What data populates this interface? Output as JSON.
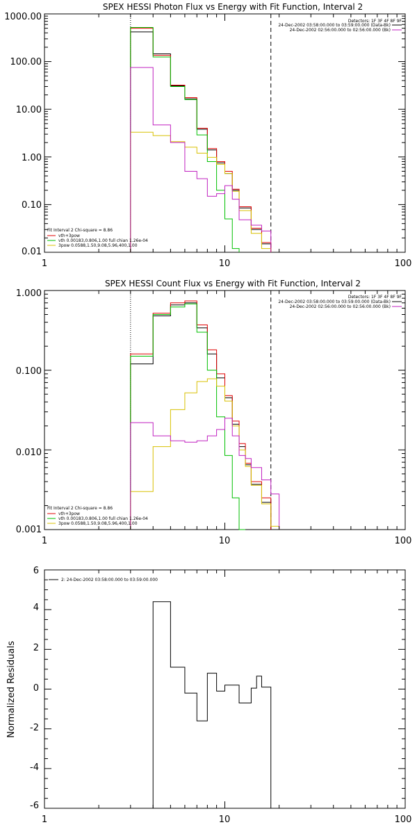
{
  "chart_data": [
    {
      "type": "line",
      "title": "SPEX HESSI Photon Flux vs Energy with Fit Function, Interval 2",
      "ylabel": "",
      "xlabel": "",
      "xscale": "log",
      "yscale": "log",
      "xlim": [
        1,
        100
      ],
      "ylim": [
        0.01,
        1000
      ],
      "xticks": [
        "1",
        "10",
        "100"
      ],
      "yticks": [
        "1000.00",
        "100.00",
        "10.00",
        "1.00",
        "0.10",
        "0.01"
      ],
      "markers": {
        "dotted_x": 3,
        "dashed_x": 18
      },
      "top_legend": {
        "detectors": "Detectors: 1F 3F 4F 8F 9F",
        "entries": [
          {
            "text": "24-Dec-2002 03:58:00.000 to 03:59:00.000 (Data-Bk)",
            "color": "#000000"
          },
          {
            "text": "24-Dec-2002 02:56:00.000 to 02:56:00.000 (Bk)",
            "color": "#c020c0"
          }
        ]
      },
      "fit_legend": {
        "title": "Fit Interval 2   Chi-square = 8.86",
        "entries": [
          {
            "text": "vth+3pow",
            "color": "#e00000"
          },
          {
            "text": "vth 0.00183,0.806,1.00   full chian 1.26e-04",
            "color": "#00c000"
          },
          {
            "text": "3pow 0.0588,1.50,9.08,5.96,400,1.00",
            "color": "#d8c000"
          }
        ]
      },
      "edges": [
        3,
        4,
        5,
        6,
        7,
        8,
        9,
        10,
        11,
        12,
        14,
        16,
        18
      ],
      "series": [
        {
          "name": "Data-Bk",
          "color": "#000000",
          "values": [
            420,
            145,
            31,
            16.5,
            3.8,
            1.4,
            0.75,
            0.45,
            0.2,
            0.085,
            0.03,
            0.015
          ]
        },
        {
          "name": "vth+3pow",
          "color": "#e00000",
          "values": [
            500,
            135,
            32,
            17.5,
            4.0,
            1.5,
            0.8,
            0.5,
            0.21,
            0.09,
            0.032,
            0.016
          ]
        },
        {
          "name": "vth",
          "color": "#00c000",
          "values": [
            520,
            125,
            30,
            16,
            2.9,
            0.8,
            0.2,
            0.05,
            0.012
          ]
        },
        {
          "name": "3pow",
          "color": "#d8c000",
          "values": [
            3.3,
            2.8,
            2.1,
            1.6,
            1.2,
            0.98,
            0.7,
            0.45,
            0.19,
            0.075,
            0.025,
            0.012
          ]
        },
        {
          "name": "Bk",
          "color": "#c020c0",
          "values": [
            75,
            4.7,
            2.0,
            0.5,
            0.35,
            0.15,
            0.17,
            0.25,
            0.13,
            0.048,
            0.037,
            0.028
          ]
        }
      ]
    },
    {
      "type": "line",
      "title": "SPEX HESSI Count Flux vs Energy with Fit Function, Interval 2",
      "ylabel": "",
      "xlabel": "",
      "xscale": "log",
      "yscale": "log",
      "xlim": [
        1,
        100
      ],
      "ylim": [
        0.001,
        1
      ],
      "xticks": [
        "1",
        "10",
        "100"
      ],
      "yticks": [
        "1.000",
        "0.100",
        "0.010",
        "0.001"
      ],
      "markers": {
        "dotted_x": 3,
        "dashed_x": 18
      },
      "top_legend": {
        "detectors": "Detectors: 1F 3F 4F 8F 9F",
        "entries": [
          {
            "text": "24-Dec-2002 03:58:00.000 to 03:59:00.000 (Data-Bk)",
            "color": "#000000"
          },
          {
            "text": "24-Dec-2002 02:56:00.000 to 02:56:00.000 (Bk)",
            "color": "#c020c0"
          }
        ]
      },
      "fit_legend": {
        "title": "Fit Interval 2   Chi-square = 8.86",
        "entries": [
          {
            "text": "vth+3pow",
            "color": "#e00000"
          },
          {
            "text": "vth 0.00183,0.806,1.00   full chian 1.26e-04",
            "color": "#00c000"
          },
          {
            "text": "3pow 0.0588,1.50,9.08,5.96,400,1.00",
            "color": "#d8c000"
          }
        ]
      },
      "edges": [
        3,
        4,
        5,
        6,
        7,
        8,
        9,
        10,
        11,
        12,
        13,
        14,
        16,
        18,
        20
      ],
      "series": [
        {
          "name": "Data-Bk",
          "color": "#000000",
          "values": [
            0.12,
            0.48,
            0.66,
            0.7,
            0.34,
            0.16,
            0.08,
            0.045,
            0.021,
            0.011,
            0.0065,
            0.0037,
            0.0022
          ]
        },
        {
          "name": "vth+3pow",
          "color": "#e00000",
          "values": [
            0.16,
            0.52,
            0.7,
            0.74,
            0.37,
            0.18,
            0.09,
            0.048,
            0.023,
            0.012,
            0.0068,
            0.004,
            0.0025
          ]
        },
        {
          "name": "vth",
          "color": "#00c000",
          "values": [
            0.15,
            0.5,
            0.62,
            0.68,
            0.3,
            0.1,
            0.026,
            0.0085,
            0.0025,
            0.0009
          ]
        },
        {
          "name": "3pow",
          "color": "#d8c000",
          "values": [
            0.003,
            0.011,
            0.032,
            0.052,
            0.072,
            0.078,
            0.063,
            0.041,
            0.02,
            0.01,
            0.0062,
            0.0036,
            0.0021,
            0.0011
          ]
        },
        {
          "name": "Bk",
          "color": "#c020c0",
          "values": [
            0.022,
            0.015,
            0.013,
            0.0125,
            0.013,
            0.015,
            0.018,
            0.025,
            0.015,
            0.0085,
            0.0078,
            0.006,
            0.0042,
            0.0028
          ]
        }
      ]
    },
    {
      "type": "line",
      "title": "",
      "ylabel": "Normalized Residuals",
      "xlabel": "",
      "xscale": "log",
      "yscale": "linear",
      "xlim": [
        1,
        100
      ],
      "ylim": [
        -6,
        6
      ],
      "xticks": [
        "1",
        "10",
        "100"
      ],
      "yticks": [
        "6",
        "4",
        "2",
        "0",
        "-2",
        "-4",
        "-6"
      ],
      "legend": {
        "text": "2: 24-Dec-2002 03:58:00.000 to 03:59:00.000",
        "color": "#000000"
      },
      "edges": [
        3,
        4,
        5,
        6,
        7,
        8,
        9,
        10,
        12,
        14,
        15,
        16,
        18
      ],
      "series": [
        {
          "name": "",
          "color": "#000000",
          "values": [
            -6,
            4.4,
            1.1,
            -0.2,
            -1.6,
            0.8,
            -0.1,
            0.2,
            -0.7,
            0.05,
            0.65,
            0.1
          ]
        }
      ]
    }
  ]
}
